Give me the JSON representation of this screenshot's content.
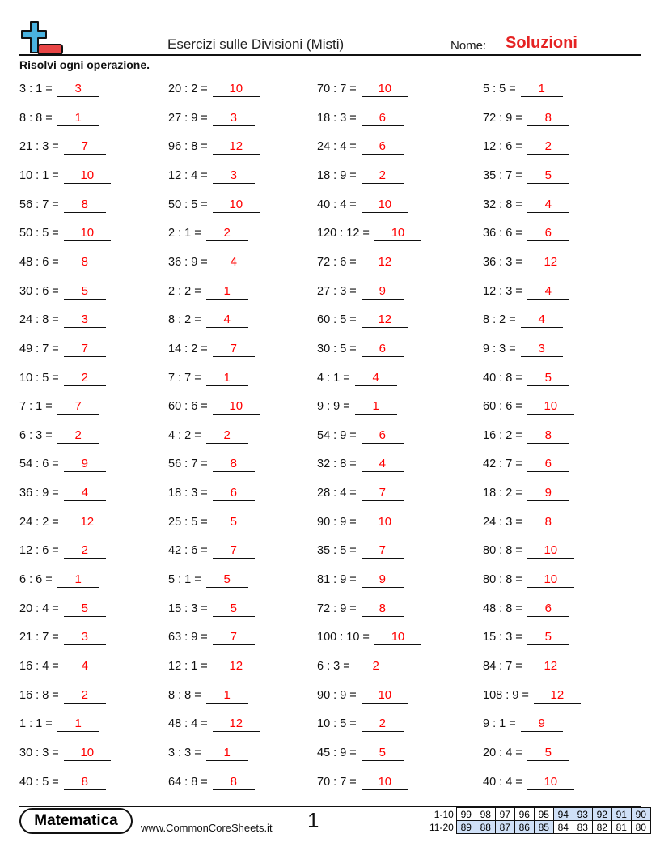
{
  "header": {
    "title": "Esercizi sulle Divisioni (Misti)",
    "name_label": "Nome:",
    "name_value": "Soluzioni",
    "instructions": "Risolvi ogni operazione."
  },
  "colors": {
    "answer": "#ff0000",
    "logo_plus": "#4ab3e0",
    "logo_minus": "#e84545",
    "score_highlight": "#cfe0f7"
  },
  "columns": [
    [
      [
        "3 : 1 =",
        "3"
      ],
      [
        "8 : 8 =",
        "1"
      ],
      [
        "21 : 3 =",
        "7"
      ],
      [
        "10 : 1 =",
        "10"
      ],
      [
        "56 : 7 =",
        "8"
      ],
      [
        "50 : 5 =",
        "10"
      ],
      [
        "48 : 6 =",
        "8"
      ],
      [
        "30 : 6 =",
        "5"
      ],
      [
        "24 : 8 =",
        "3"
      ],
      [
        "49 : 7 =",
        "7"
      ],
      [
        "10 : 5 =",
        "2"
      ],
      [
        "7 : 1 =",
        "7"
      ],
      [
        "6 : 3 =",
        "2"
      ],
      [
        "54 : 6 =",
        "9"
      ],
      [
        "36 : 9 =",
        "4"
      ],
      [
        "24 : 2 =",
        "12"
      ],
      [
        "12 : 6 =",
        "2"
      ],
      [
        "6 : 6 =",
        "1"
      ],
      [
        "20 : 4 =",
        "5"
      ],
      [
        "21 : 7 =",
        "3"
      ],
      [
        "16 : 4 =",
        "4"
      ],
      [
        "16 : 8 =",
        "2"
      ],
      [
        "1 : 1 =",
        "1"
      ],
      [
        "30 : 3 =",
        "10"
      ],
      [
        "40 : 5 =",
        "8"
      ]
    ],
    [
      [
        "20 : 2 =",
        "10"
      ],
      [
        "27 : 9 =",
        "3"
      ],
      [
        "96 : 8 =",
        "12"
      ],
      [
        "12 : 4 =",
        "3"
      ],
      [
        "50 : 5 =",
        "10"
      ],
      [
        "2 : 1 =",
        "2"
      ],
      [
        "36 : 9 =",
        "4"
      ],
      [
        "2 : 2 =",
        "1"
      ],
      [
        "8 : 2 =",
        "4"
      ],
      [
        "14 : 2 =",
        "7"
      ],
      [
        "7 : 7 =",
        "1"
      ],
      [
        "60 : 6 =",
        "10"
      ],
      [
        "4 : 2 =",
        "2"
      ],
      [
        "56 : 7 =",
        "8"
      ],
      [
        "18 : 3 =",
        "6"
      ],
      [
        "25 : 5 =",
        "5"
      ],
      [
        "42 : 6 =",
        "7"
      ],
      [
        "5 : 1 =",
        "5"
      ],
      [
        "15 : 3 =",
        "5"
      ],
      [
        "63 : 9 =",
        "7"
      ],
      [
        "12 : 1 =",
        "12"
      ],
      [
        "8 : 8 =",
        "1"
      ],
      [
        "48 : 4 =",
        "12"
      ],
      [
        "3 : 3 =",
        "1"
      ],
      [
        "64 : 8 =",
        "8"
      ]
    ],
    [
      [
        "70 : 7 =",
        "10"
      ],
      [
        "18 : 3 =",
        "6"
      ],
      [
        "24 : 4 =",
        "6"
      ],
      [
        "18 : 9 =",
        "2"
      ],
      [
        "40 : 4 =",
        "10"
      ],
      [
        "120 : 12 =",
        "10"
      ],
      [
        "72 : 6 =",
        "12"
      ],
      [
        "27 : 3 =",
        "9"
      ],
      [
        "60 : 5 =",
        "12"
      ],
      [
        "30 : 5 =",
        "6"
      ],
      [
        "4 : 1 =",
        "4"
      ],
      [
        "9 : 9 =",
        "1"
      ],
      [
        "54 : 9 =",
        "6"
      ],
      [
        "32 : 8 =",
        "4"
      ],
      [
        "28 : 4 =",
        "7"
      ],
      [
        "90 : 9 =",
        "10"
      ],
      [
        "35 : 5 =",
        "7"
      ],
      [
        "81 : 9 =",
        "9"
      ],
      [
        "72 : 9 =",
        "8"
      ],
      [
        "100 : 10 =",
        "10"
      ],
      [
        "6 : 3 =",
        "2"
      ],
      [
        "90 : 9 =",
        "10"
      ],
      [
        "10 : 5 =",
        "2"
      ],
      [
        "45 : 9 =",
        "5"
      ],
      [
        "70 : 7 =",
        "10"
      ]
    ],
    [
      [
        "5 : 5 =",
        "1"
      ],
      [
        "72 : 9 =",
        "8"
      ],
      [
        "12 : 6 =",
        "2"
      ],
      [
        "35 : 7 =",
        "5"
      ],
      [
        "32 : 8 =",
        "4"
      ],
      [
        "36 : 6 =",
        "6"
      ],
      [
        "36 : 3 =",
        "12"
      ],
      [
        "12 : 3 =",
        "4"
      ],
      [
        "8 : 2 =",
        "4"
      ],
      [
        "9 : 3 =",
        "3"
      ],
      [
        "40 : 8 =",
        "5"
      ],
      [
        "60 : 6 =",
        "10"
      ],
      [
        "16 : 2 =",
        "8"
      ],
      [
        "42 : 7 =",
        "6"
      ],
      [
        "18 : 2 =",
        "9"
      ],
      [
        "24 : 3 =",
        "8"
      ],
      [
        "80 : 8 =",
        "10"
      ],
      [
        "80 : 8 =",
        "10"
      ],
      [
        "48 : 8 =",
        "6"
      ],
      [
        "15 : 3 =",
        "5"
      ],
      [
        "84 : 7 =",
        "12"
      ],
      [
        "108 : 9 =",
        "12"
      ],
      [
        "9 : 1 =",
        "9"
      ],
      [
        "20 : 4 =",
        "5"
      ],
      [
        "40 : 4 =",
        "10"
      ]
    ]
  ],
  "footer": {
    "brand": "Matematica",
    "url": "www.CommonCoreSheets.it",
    "page": "1",
    "score_rows": [
      {
        "label": "1-10",
        "values": [
          "99",
          "98",
          "97",
          "96",
          "95",
          "94",
          "93",
          "92",
          "91",
          "90"
        ],
        "highlighted": [
          false,
          false,
          false,
          false,
          false,
          true,
          true,
          true,
          true,
          true
        ]
      },
      {
        "label": "11-20",
        "values": [
          "89",
          "88",
          "87",
          "86",
          "85",
          "84",
          "83",
          "82",
          "81",
          "80"
        ],
        "highlighted": [
          true,
          true,
          true,
          true,
          true,
          false,
          false,
          false,
          false,
          false
        ]
      }
    ]
  }
}
